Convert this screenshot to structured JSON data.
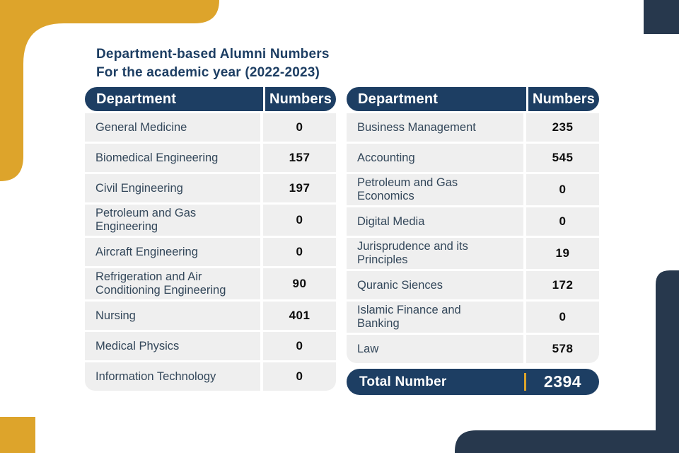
{
  "title": {
    "line1": "Department-based Alumni Numbers",
    "line2": "For the academic year (2022-2023)"
  },
  "colors": {
    "navy_header": "#1d3e63",
    "navy_corner": "#27384d",
    "gold": "#dda42b",
    "row_gray": "#efefef",
    "dept_text": "#33475a",
    "number_text": "#0c0c0c"
  },
  "left_table": {
    "headers": {
      "department": "Department",
      "numbers": "Numbers"
    },
    "rows": [
      {
        "department": "General Medicine",
        "numbers": "0"
      },
      {
        "department": "Biomedical Engineering",
        "numbers": "157"
      },
      {
        "department": "Civil Engineering",
        "numbers": "197"
      },
      {
        "department": "Petroleum and Gas\nEngineering",
        "numbers": "0"
      },
      {
        "department": "Aircraft Engineering",
        "numbers": "0"
      },
      {
        "department": "Refrigeration and Air\nConditioning Engineering",
        "numbers": "90"
      },
      {
        "department": "Nursing",
        "numbers": "401"
      },
      {
        "department": "Medical Physics",
        "numbers": "0"
      },
      {
        "department": "Information Technology",
        "numbers": "0"
      }
    ]
  },
  "right_table": {
    "headers": {
      "department": "Department",
      "numbers": "Numbers"
    },
    "rows": [
      {
        "department": "Business Management",
        "numbers": "235"
      },
      {
        "department": "Accounting",
        "numbers": "545"
      },
      {
        "department": "Petroleum and Gas\nEconomics",
        "numbers": "0"
      },
      {
        "department": "Digital Media",
        "numbers": "0"
      },
      {
        "department": "Jurisprudence and its\nPrinciples",
        "numbers": "19"
      },
      {
        "department": "Quranic Siences",
        "numbers": "172"
      },
      {
        "department": "Islamic Finance and\nBanking",
        "numbers": "0"
      },
      {
        "department": "Law",
        "numbers": "578"
      }
    ],
    "total": {
      "label": "Total Number",
      "value": "2394"
    }
  }
}
